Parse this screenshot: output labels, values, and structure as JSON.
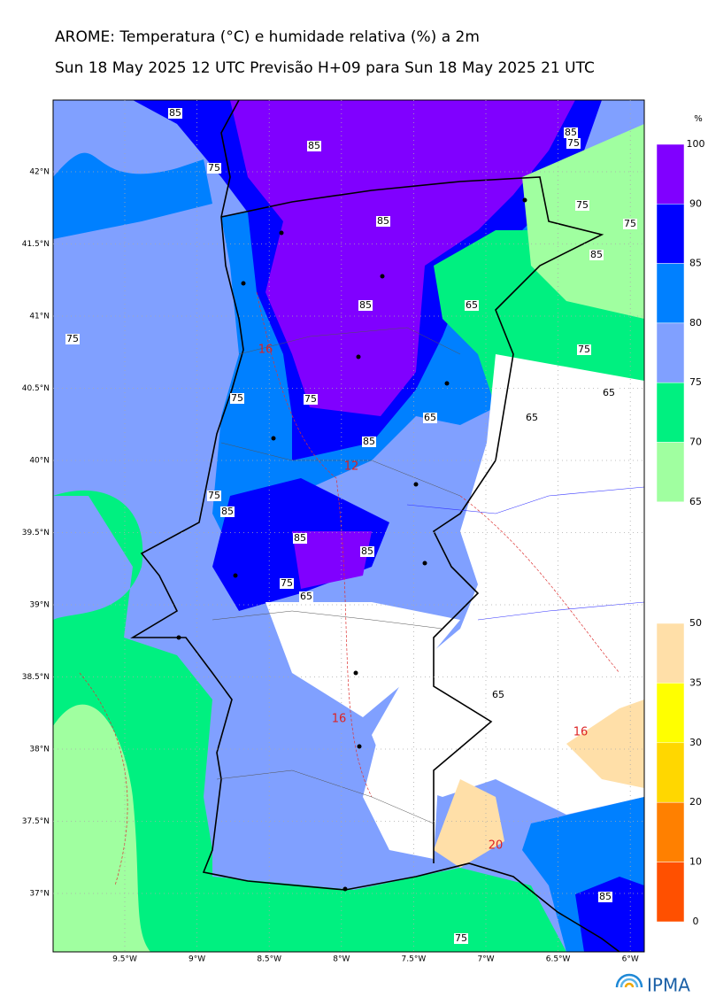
{
  "title": "AROME: Temperatura (°C) e humidade relativa (%) a 2m",
  "subtitle": "Sun 18 May 2025 12 UTC Previsão H+09 para Sun 18 May 2025 21 UTC",
  "map": {
    "lat_labels": [
      "42°N",
      "41.5°N",
      "41°N",
      "40.5°N",
      "40°N",
      "39.5°N",
      "39°N",
      "38.5°N",
      "38°N",
      "37.5°N",
      "37°N"
    ],
    "lon_labels": [
      "9.5°W",
      "9°W",
      "8.5°W",
      "8°W",
      "7.5°W",
      "7°W",
      "6.5°W",
      "6°W"
    ],
    "humidity_contour_labels": [
      85,
      85,
      75,
      75,
      85,
      85,
      75,
      75,
      85,
      65,
      85,
      75,
      75,
      75,
      75,
      65,
      65,
      65,
      85,
      75,
      85,
      85,
      85,
      75,
      65,
      65,
      75,
      85
    ],
    "temperature_contour_labels": [
      16,
      12,
      16,
      16,
      20
    ]
  },
  "humidity_colorbar": {
    "unit": "%",
    "labels": [
      100,
      90,
      85,
      80,
      75,
      70,
      65
    ],
    "colors": [
      "#8000ff",
      "#0000ff",
      "#0080ff",
      "#80a0ff",
      "#00f080",
      "#a0ffa0"
    ]
  },
  "temperature_colorbar": {
    "labels": [
      50,
      35,
      30,
      20,
      10,
      0
    ],
    "colors": [
      "#ffdfa8",
      "#ffff00",
      "#ffd700",
      "#ff8000",
      "#ff5000"
    ]
  },
  "logo": "IPMA"
}
